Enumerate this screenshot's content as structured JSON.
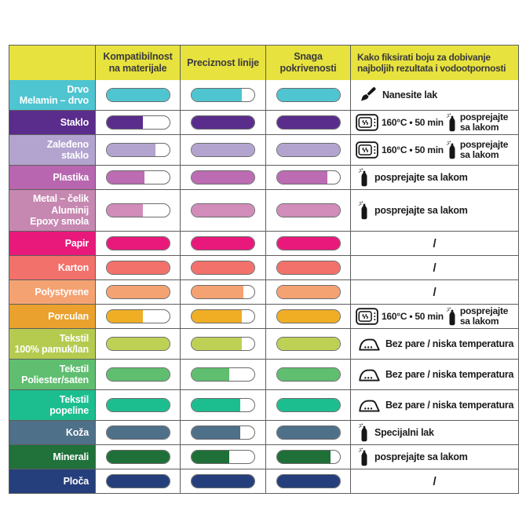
{
  "colors": {
    "header_bg": "#E7E23E",
    "header_text": "#3B3B3B",
    "grid_border": "#5E5E5E",
    "pill_outline": "#6B6B6B",
    "label_text": "#FFFFFF",
    "instruction_text": "#1C1C1C",
    "background": "#FFFFFF"
  },
  "chart_data": {
    "type": "table",
    "columns": [
      "",
      "Kompatibilnost na materijale",
      "Preciznost linije",
      "Snaga pokrivenosti",
      "Kako fiksirati boju za dobivanje najboljih rezultata i vodootpornosti"
    ],
    "rating_legend": "fills_percent = [Kompatibilnost na materijale, Preciznost linije, Snaga pokrivenosti]",
    "rows": [
      {
        "label_lines": [
          "Drvo",
          "Melamin – drvo"
        ],
        "row_color": "#4EC5D1",
        "pill_color": "#4EC5D1",
        "fills_percent": [
          100,
          80,
          100
        ],
        "instruction": {
          "type": "brush",
          "text": "Nanesite lak"
        }
      },
      {
        "label_lines": [
          "Staklo"
        ],
        "row_color": "#5A2C8C",
        "pill_color": "#5A2C8C",
        "fills_percent": [
          58,
          100,
          100
        ],
        "instruction": {
          "type": "oven_spray",
          "oven_text": "160°C • 50 min",
          "spray_lines": [
            "posprejajte",
            "sa lakom"
          ]
        }
      },
      {
        "label_lines": [
          "Zaleđeno",
          "staklo"
        ],
        "row_color": "#B2A4CF",
        "pill_color": "#B2A4CF",
        "fills_percent": [
          78,
          100,
          100
        ],
        "instruction": {
          "type": "oven_spray",
          "oven_text": "160°C • 50 min",
          "spray_lines": [
            "posprejajte",
            "sa lakom"
          ]
        }
      },
      {
        "label_lines": [
          "Plastika"
        ],
        "row_color": "#B766AF",
        "pill_color": "#BB6CB3",
        "fills_percent": [
          60,
          100,
          80
        ],
        "instruction": {
          "type": "spray",
          "text": "posprejajte sa lakom"
        }
      },
      {
        "label_lines": [
          "Metal – čelik",
          "Aluminij",
          "Epoxy smola"
        ],
        "row_color": "#C687B1",
        "pill_color": "#D18CBA",
        "fills_percent": [
          58,
          100,
          100
        ],
        "instruction": {
          "type": "spray",
          "text": "posprejajte sa lakom"
        }
      },
      {
        "label_lines": [
          "Papir"
        ],
        "row_color": "#E8197B",
        "pill_color": "#E8197B",
        "fills_percent": [
          100,
          100,
          100
        ],
        "instruction": {
          "type": "slash",
          "text": "/"
        }
      },
      {
        "label_lines": [
          "Karton"
        ],
        "row_color": "#F2716B",
        "pill_color": "#F2716B",
        "fills_percent": [
          100,
          100,
          100
        ],
        "instruction": {
          "type": "slash",
          "text": "/"
        }
      },
      {
        "label_lines": [
          "Polystyrene"
        ],
        "row_color": "#F5A273",
        "pill_color": "#F5A273",
        "fills_percent": [
          100,
          82,
          100
        ],
        "instruction": {
          "type": "slash",
          "text": "/"
        }
      },
      {
        "label_lines": [
          "Porculan"
        ],
        "row_color": "#EAA12D",
        "pill_color": "#F0AE25",
        "fills_percent": [
          58,
          80,
          100
        ],
        "instruction": {
          "type": "oven_spray",
          "oven_text": "160°C • 50 min",
          "spray_lines": [
            "posprejajte",
            "sa lakom"
          ]
        }
      },
      {
        "label_lines": [
          "Tekstil",
          "100% pamuk/lan"
        ],
        "row_color": "#B5CB50",
        "pill_color": "#BFD155",
        "fills_percent": [
          100,
          80,
          100
        ],
        "instruction": {
          "type": "iron",
          "text": "Bez pare / niska temperatura"
        }
      },
      {
        "label_lines": [
          "Tekstil",
          "Poliester/saten"
        ],
        "row_color": "#5FBE6F",
        "pill_color": "#5FBE6F",
        "fills_percent": [
          100,
          60,
          100
        ],
        "instruction": {
          "type": "iron",
          "text": "Bez pare / niska temperatura"
        }
      },
      {
        "label_lines": [
          "Tekstil",
          "popeline"
        ],
        "row_color": "#1CBE8F",
        "pill_color": "#1CBE8F",
        "fills_percent": [
          100,
          78,
          100
        ],
        "instruction": {
          "type": "iron",
          "text": "Bez pare / niska temperatura"
        }
      },
      {
        "label_lines": [
          "Koža"
        ],
        "row_color": "#4E7089",
        "pill_color": "#4E7089",
        "fills_percent": [
          100,
          78,
          100
        ],
        "instruction": {
          "type": "spray",
          "text": "Specijalni lak"
        }
      },
      {
        "label_lines": [
          "Minerali"
        ],
        "row_color": "#20713A",
        "pill_color": "#1E7038",
        "fills_percent": [
          100,
          60,
          85
        ],
        "instruction": {
          "type": "spray",
          "text": "posprejajte sa lakom"
        }
      },
      {
        "label_lines": [
          "Ploča"
        ],
        "row_color": "#243F7B",
        "pill_color": "#243F7B",
        "fills_percent": [
          100,
          100,
          100
        ],
        "instruction": {
          "type": "slash",
          "text": "/"
        }
      }
    ]
  }
}
